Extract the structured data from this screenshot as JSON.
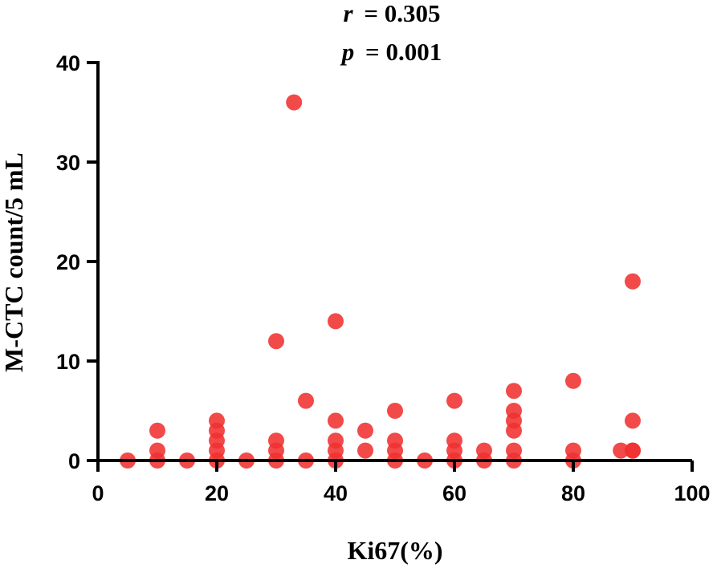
{
  "chart_data": {
    "type": "scatter",
    "annotation": {
      "r_label": "r",
      "r_value": "= 0.305",
      "p_label": "p",
      "p_value": "= 0.001"
    },
    "xlabel": "Ki67(%)",
    "ylabel": "M-CTC count/5 mL",
    "xlim": [
      0,
      100
    ],
    "ylim": [
      0,
      40
    ],
    "xticks": [
      0,
      20,
      40,
      60,
      80,
      100
    ],
    "yticks": [
      0,
      10,
      20,
      30,
      40
    ],
    "xtick_labels": [
      "0",
      "20",
      "40",
      "60",
      "80",
      "100"
    ],
    "ytick_labels": [
      "0",
      "10",
      "20",
      "30",
      "40"
    ],
    "grid": false,
    "point_color": "#f03030",
    "points": [
      {
        "x": 5,
        "y": 0
      },
      {
        "x": 10,
        "y": 0
      },
      {
        "x": 10,
        "y": 1
      },
      {
        "x": 10,
        "y": 3
      },
      {
        "x": 15,
        "y": 0
      },
      {
        "x": 20,
        "y": 0
      },
      {
        "x": 20,
        "y": 1
      },
      {
        "x": 20,
        "y": 2
      },
      {
        "x": 20,
        "y": 3
      },
      {
        "x": 20,
        "y": 4
      },
      {
        "x": 25,
        "y": 0
      },
      {
        "x": 30,
        "y": 0
      },
      {
        "x": 30,
        "y": 1
      },
      {
        "x": 30,
        "y": 2
      },
      {
        "x": 30,
        "y": 12
      },
      {
        "x": 33,
        "y": 36
      },
      {
        "x": 35,
        "y": 0
      },
      {
        "x": 35,
        "y": 6
      },
      {
        "x": 40,
        "y": 0
      },
      {
        "x": 40,
        "y": 1
      },
      {
        "x": 40,
        "y": 2
      },
      {
        "x": 40,
        "y": 4
      },
      {
        "x": 40,
        "y": 14
      },
      {
        "x": 45,
        "y": 1
      },
      {
        "x": 45,
        "y": 3
      },
      {
        "x": 50,
        "y": 0
      },
      {
        "x": 50,
        "y": 1
      },
      {
        "x": 50,
        "y": 2
      },
      {
        "x": 50,
        "y": 5
      },
      {
        "x": 55,
        "y": 0
      },
      {
        "x": 60,
        "y": 0
      },
      {
        "x": 60,
        "y": 1
      },
      {
        "x": 60,
        "y": 2
      },
      {
        "x": 60,
        "y": 6
      },
      {
        "x": 65,
        "y": 0
      },
      {
        "x": 65,
        "y": 1
      },
      {
        "x": 70,
        "y": 0
      },
      {
        "x": 70,
        "y": 1
      },
      {
        "x": 70,
        "y": 3
      },
      {
        "x": 70,
        "y": 4
      },
      {
        "x": 70,
        "y": 5
      },
      {
        "x": 70,
        "y": 7
      },
      {
        "x": 80,
        "y": 0
      },
      {
        "x": 80,
        "y": 1
      },
      {
        "x": 80,
        "y": 8
      },
      {
        "x": 88,
        "y": 1
      },
      {
        "x": 90,
        "y": 1
      },
      {
        "x": 90,
        "y": 1
      },
      {
        "x": 90,
        "y": 4
      },
      {
        "x": 90,
        "y": 18
      }
    ]
  }
}
